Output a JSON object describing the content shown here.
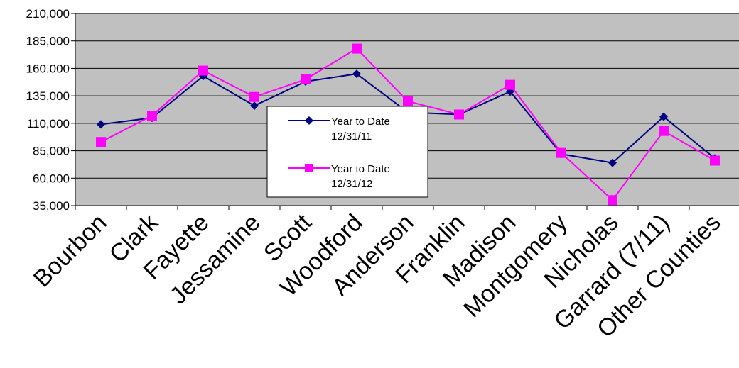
{
  "chart_data": {
    "type": "line",
    "title": "",
    "xlabel": "",
    "ylabel": "",
    "categories": [
      "Bourbon",
      "Clark",
      "Fayette",
      "Jessamine",
      "Scott",
      "Woodford",
      "Anderson",
      "Franklin",
      "Madison",
      "Montgomery",
      "Nicholas",
      "Garrard (7/11)",
      "Other Counties"
    ],
    "ylim": [
      35000,
      210000
    ],
    "yticks": [
      35000,
      60000,
      85000,
      110000,
      135000,
      160000,
      185000,
      210000
    ],
    "ytick_labels": [
      "35,000",
      "60,000",
      "85,000",
      "110,000",
      "135,000",
      "160,000",
      "185,000",
      "210,000"
    ],
    "grid": true,
    "plot_background": "#c0c0c0",
    "legend_position": "center",
    "series": [
      {
        "name_line1": "Year to Date",
        "name_line2": "12/31/11",
        "color": "#000080",
        "marker": "diamond",
        "values": [
          109000,
          115000,
          153000,
          126000,
          148000,
          155000,
          120000,
          118000,
          139000,
          82000,
          74000,
          116000,
          78000
        ]
      },
      {
        "name_line1": "Year to Date",
        "name_line2": "12/31/12",
        "color": "#ff00ff",
        "marker": "square",
        "values": [
          93000,
          117000,
          158000,
          134000,
          150000,
          178000,
          130000,
          118000,
          145000,
          83000,
          40000,
          103000,
          76000
        ]
      }
    ]
  }
}
